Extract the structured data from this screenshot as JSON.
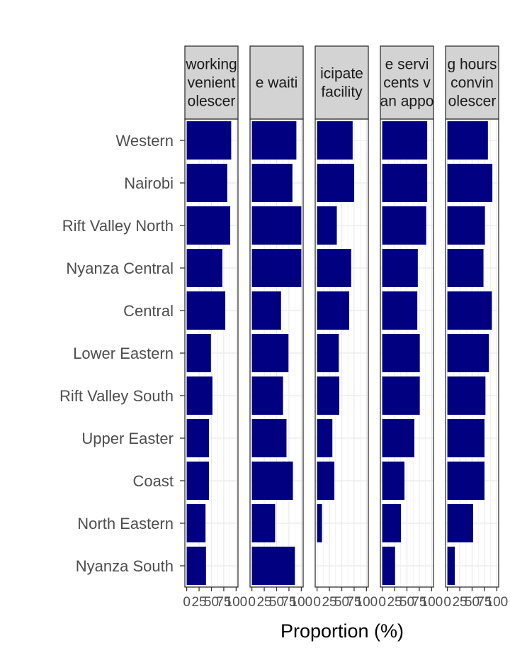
{
  "chart_data": {
    "type": "bar",
    "orientation": "horizontal",
    "xlabel": "Proportion (%)",
    "xlim": [
      0,
      100
    ],
    "xticks": [
      0,
      25,
      50,
      75,
      100
    ],
    "xtick_labels": [
      "0",
      "25",
      "50",
      "75",
      "100"
    ],
    "bar_color": "#000080",
    "grid": true,
    "categories": [
      "Western",
      "Nairobi",
      "Rift Valley North",
      "Nyanza Central",
      "Central",
      "Lower Eastern",
      "Rift Valley South",
      "Upper Easter",
      "Coast",
      "North Eastern",
      "Nyanza South"
    ],
    "panels": [
      {
        "strip_lines": [
          "working",
          "venient",
          "olescer"
        ],
        "values": [
          90,
          82,
          88,
          72,
          78,
          49,
          52,
          45,
          45,
          38,
          39
        ]
      },
      {
        "strip_lines": [
          "e waiti"
        ],
        "values": [
          90,
          82,
          100,
          100,
          59,
          74,
          63,
          70,
          83,
          47,
          87
        ]
      },
      {
        "strip_lines": [
          "icipate",
          "facility"
        ],
        "values": [
          72,
          75,
          40,
          69,
          65,
          44,
          45,
          31,
          35,
          10,
          0
        ]
      },
      {
        "strip_lines": [
          "e servi",
          "cents v",
          "an appo"
        ],
        "values": [
          91,
          91,
          89,
          72,
          71,
          76,
          76,
          65,
          45,
          38,
          26
        ]
      },
      {
        "strip_lines": [
          "g hours",
          "convin",
          "olescer"
        ],
        "values": [
          82,
          91,
          76,
          73,
          90,
          84,
          77,
          75,
          75,
          52,
          15
        ]
      }
    ]
  }
}
